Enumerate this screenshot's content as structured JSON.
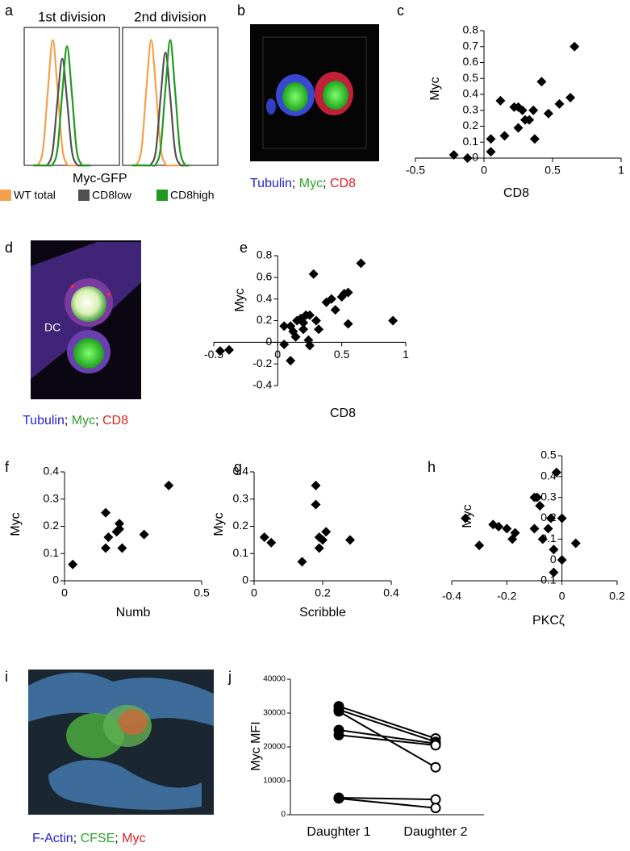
{
  "panel_labels": [
    "a",
    "b",
    "c",
    "d",
    "e",
    "f",
    "g",
    "h",
    "i",
    "j"
  ],
  "images": [
    {
      "caption": [
        "Tubulin",
        "; ",
        "Myc",
        "; ",
        "CD8"
      ],
      "caption_colors": [
        "#1f1fd0",
        "#000000",
        "#2aa52a",
        "#000000",
        "#e02020"
      ]
    },
    {
      "label": "DC",
      "caption": [
        "Tubulin",
        "; ",
        "Myc",
        "; ",
        "CD8"
      ],
      "caption_colors": [
        "#1f1fd0",
        "#000000",
        "#2aa52a",
        "#000000",
        "#e02020"
      ]
    },
    {
      "caption": [
        "F-Actin",
        "; ",
        "CFSE",
        "; ",
        "Myc"
      ],
      "caption_colors": [
        "#1f1fd0",
        "#000000",
        "#2aa52a",
        "#000000",
        "#e02020"
      ]
    }
  ],
  "chart_data": [
    {
      "type": "line",
      "title": "1st division",
      "xlabel": "Myc-GFP",
      "x": [
        1,
        1.5,
        2,
        2.5,
        3,
        3.5,
        4,
        4.5,
        5,
        5.5,
        6,
        6.5,
        7
      ],
      "xlim": [
        0,
        10
      ],
      "ylim": [
        0,
        110
      ],
      "series": [
        {
          "name": "WT total",
          "color": "#f5a04a",
          "values": [
            0,
            1,
            14,
            61,
            100,
            61,
            14,
            1,
            0,
            0,
            0,
            0,
            0
          ]
        },
        {
          "name": "CD8low",
          "color": "#505050",
          "values": [
            0,
            0,
            0,
            1,
            12,
            52,
            85,
            52,
            12,
            1,
            0,
            0,
            0
          ]
        },
        {
          "name": "CD8high",
          "color": "#1e9a1e",
          "values": [
            0,
            0,
            0,
            0,
            1,
            13,
            58,
            95,
            58,
            13,
            1,
            0,
            0
          ]
        }
      ]
    },
    {
      "type": "line",
      "title": "2nd division",
      "x": [
        1,
        1.5,
        2,
        2.5,
        3,
        3.5,
        4,
        4.5,
        5,
        5.5,
        6,
        6.5,
        7
      ],
      "xlim": [
        0,
        10
      ],
      "ylim": [
        0,
        110
      ],
      "series": [
        {
          "color": "#f5a04a",
          "values": [
            0,
            1,
            14,
            61,
            100,
            61,
            14,
            1,
            0,
            0,
            0,
            0,
            0
          ]
        },
        {
          "color": "#505050",
          "values": [
            0,
            0,
            0,
            0,
            1,
            12,
            55,
            90,
            55,
            12,
            1,
            0,
            0
          ]
        },
        {
          "color": "#1e9a1e",
          "values": [
            0,
            0,
            0,
            0,
            0,
            1,
            14,
            61,
            100,
            61,
            14,
            1,
            0
          ]
        }
      ]
    },
    {
      "type": "scatter",
      "xlabel": "CD8",
      "ylabel": "Myc",
      "xlim": [
        -0.5,
        1
      ],
      "xticks": [
        -0.5,
        0,
        0.5,
        1
      ],
      "ylim": [
        0,
        0.8
      ],
      "yticks": [
        0,
        0.1,
        0.2,
        0.3,
        0.4,
        0.5,
        0.6,
        0.7,
        0.8
      ],
      "x": [
        -0.22,
        -0.12,
        0.05,
        0.05,
        0.12,
        0.15,
        0.22,
        0.25,
        0.25,
        0.28,
        0.3,
        0.33,
        0.36,
        0.37,
        0.42,
        0.47,
        0.55,
        0.63,
        0.66
      ],
      "values": [
        0.02,
        0,
        0.12,
        0.04,
        0.36,
        0.14,
        0.32,
        0.32,
        0.19,
        0.3,
        0.24,
        0.24,
        0.3,
        0.12,
        0.48,
        0.28,
        0.34,
        0.38,
        0.7
      ]
    },
    {
      "type": "scatter",
      "xlabel": "CD8",
      "ylabel": "Myc",
      "xlim": [
        -0.5,
        1
      ],
      "xticks": [
        -0.5,
        0,
        0.5,
        1
      ],
      "ylim": [
        -0.4,
        0.8
      ],
      "yticks": [
        -0.4,
        -0.2,
        0,
        0.2,
        0.4,
        0.6,
        0.8
      ],
      "x": [
        -0.45,
        -0.38,
        0.05,
        0.1,
        0.05,
        0.1,
        0.12,
        0.14,
        0.15,
        0.18,
        0.2,
        0.2,
        0.22,
        0.24,
        0.25,
        0.28,
        0.3,
        0.32,
        0.38,
        0.42,
        0.45,
        0.5,
        0.52,
        0.55,
        0.55,
        0.65,
        0.9,
        0.25
      ],
      "values": [
        -0.08,
        -0.07,
        -0.02,
        -0.17,
        0.15,
        0.15,
        0.1,
        0.05,
        0.2,
        0.22,
        0.18,
        0.12,
        0.25,
        0.02,
        0.25,
        0.63,
        0.2,
        0.12,
        0.37,
        0.4,
        0.3,
        0.42,
        0.45,
        0.46,
        0.17,
        0.73,
        0.2,
        -0.03
      ]
    },
    {
      "type": "scatter",
      "xlabel": "Numb",
      "ylabel": "Myc",
      "xlim": [
        0,
        0.5
      ],
      "xticks": [
        0,
        0.5
      ],
      "ylim": [
        0,
        0.4
      ],
      "yticks": [
        0,
        0.1,
        0.2,
        0.3,
        0.4
      ],
      "x": [
        0.03,
        0.15,
        0.16,
        0.15,
        0.2,
        0.2,
        0.19,
        0.21,
        0.29,
        0.38
      ],
      "values": [
        0.06,
        0.25,
        0.16,
        0.12,
        0.19,
        0.21,
        0.18,
        0.12,
        0.17,
        0.35
      ]
    },
    {
      "type": "scatter",
      "xlabel": "Scribble",
      "ylabel": "Myc",
      "xlim": [
        0,
        0.4
      ],
      "xticks": [
        0,
        0.2,
        0.4
      ],
      "ylim": [
        0,
        0.4
      ],
      "yticks": [
        0,
        0.1,
        0.2,
        0.3,
        0.4
      ],
      "x": [
        0.03,
        0.05,
        0.14,
        0.18,
        0.18,
        0.19,
        0.19,
        0.2,
        0.21,
        0.28
      ],
      "values": [
        0.16,
        0.14,
        0.07,
        0.35,
        0.28,
        0.16,
        0.12,
        0.15,
        0.18,
        0.15
      ]
    },
    {
      "type": "scatter",
      "xlabel": "PKCζ",
      "ylabel": "Myc",
      "x_axis_position": "bottom",
      "xlim": [
        -0.4,
        0.2
      ],
      "xticks": [
        -0.4,
        -0.2,
        0,
        0.2
      ],
      "ylim": [
        -0.1,
        0.5
      ],
      "yticks": [
        -0.1,
        0,
        0.1,
        0.2,
        0.3,
        0.4,
        0.5
      ],
      "x": [
        -0.35,
        -0.3,
        -0.25,
        -0.23,
        -0.2,
        -0.18,
        -0.17,
        -0.1,
        -0.09,
        -0.08,
        -0.07,
        -0.05,
        -0.04,
        -0.02,
        -0.03,
        0,
        0,
        -0.03,
        0.05,
        -0.1
      ],
      "values": [
        0.2,
        0.07,
        0.17,
        0.16,
        0.15,
        0.1,
        0.13,
        0.3,
        0.3,
        0.26,
        0.1,
        0.15,
        0.2,
        0.42,
        0.05,
        0.2,
        0,
        -0.06,
        0.08,
        0.15
      ]
    },
    {
      "type": "paired",
      "ylabel": "Myc MFI",
      "categories": [
        "Daughter 1",
        "Daughter 2"
      ],
      "ylim": [
        0,
        40000
      ],
      "yticks": [
        0,
        10000,
        20000,
        30000,
        40000
      ],
      "values": [
        [
          32000,
          22500
        ],
        [
          31000,
          21500
        ],
        [
          30500,
          14000
        ],
        [
          25000,
          21000
        ],
        [
          23500,
          20500
        ],
        [
          5000,
          4500
        ],
        [
          4800,
          2000
        ]
      ]
    }
  ]
}
